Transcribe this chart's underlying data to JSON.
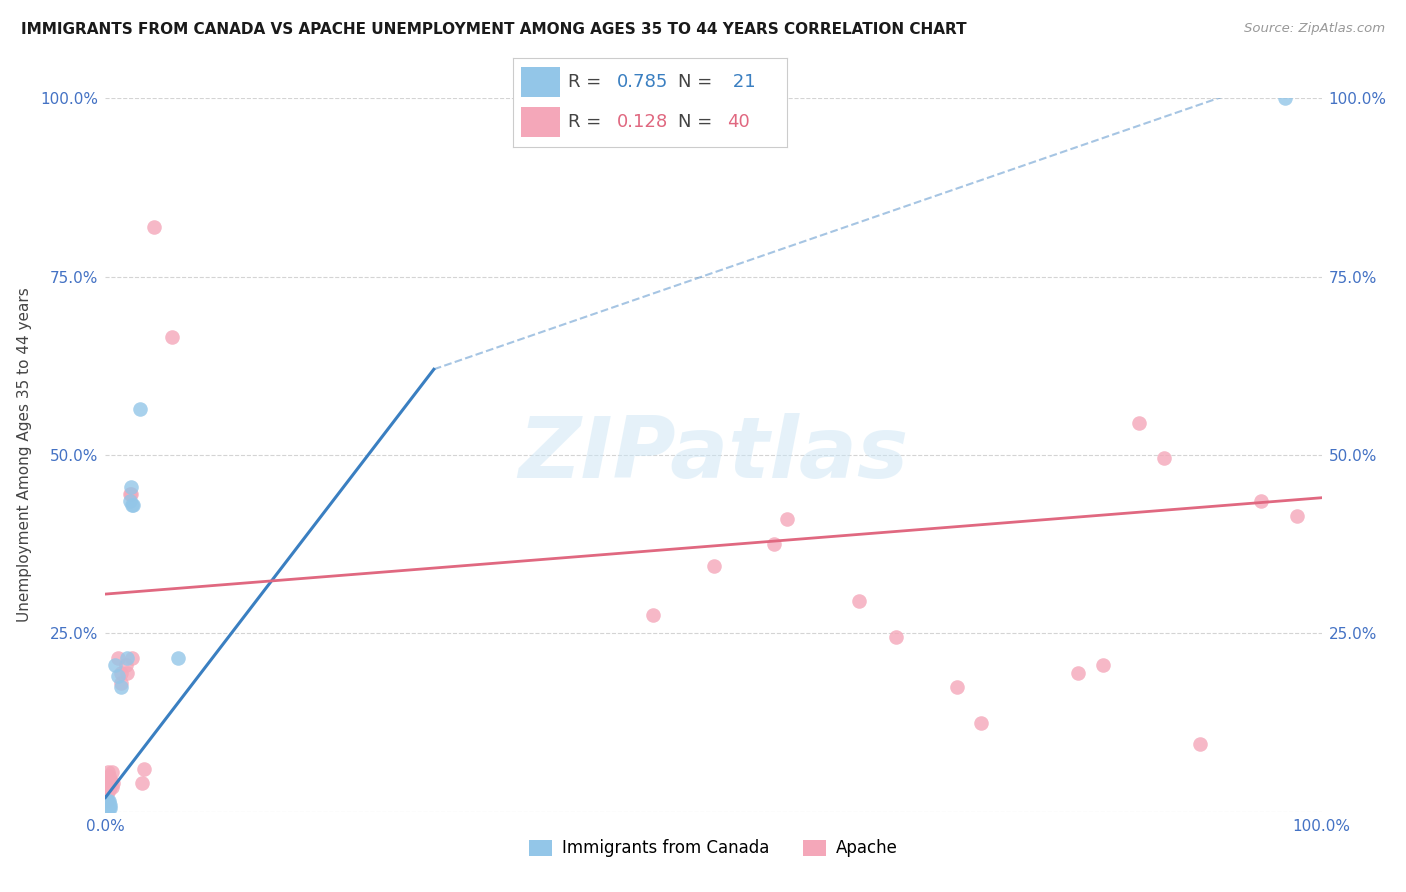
{
  "title": "IMMIGRANTS FROM CANADA VS APACHE UNEMPLOYMENT AMONG AGES 35 TO 44 YEARS CORRELATION CHART",
  "source": "Source: ZipAtlas.com",
  "ylabel": "Unemployment Among Ages 35 to 44 years",
  "xlim": [
    0.0,
    1.0
  ],
  "ylim": [
    0.0,
    1.0
  ],
  "xticks": [
    0.0,
    0.25,
    0.5,
    0.75,
    1.0
  ],
  "yticks": [
    0.0,
    0.25,
    0.5,
    0.75,
    1.0
  ],
  "xtick_labels": [
    "0.0%",
    "",
    "",
    "",
    "100.0%"
  ],
  "ytick_labels": [
    "",
    "25.0%",
    "50.0%",
    "75.0%",
    "100.0%"
  ],
  "legend_label_canada": "Immigrants from Canada",
  "legend_label_apache": "Apache",
  "blue_color": "#93c6e8",
  "pink_color": "#f4a7b9",
  "blue_line_color": "#3a7fc1",
  "pink_line_color": "#e06880",
  "blue_R": "0.785",
  "blue_N": "21",
  "pink_R": "0.128",
  "pink_N": "40",
  "blue_scatter": [
    [
      0.001,
      0.005
    ],
    [
      0.001,
      0.01
    ],
    [
      0.002,
      0.005
    ],
    [
      0.002,
      0.01
    ],
    [
      0.002,
      0.015
    ],
    [
      0.003,
      0.005
    ],
    [
      0.003,
      0.01
    ],
    [
      0.003,
      0.015
    ],
    [
      0.004,
      0.005
    ],
    [
      0.004,
      0.01
    ],
    [
      0.008,
      0.205
    ],
    [
      0.01,
      0.19
    ],
    [
      0.013,
      0.175
    ],
    [
      0.018,
      0.215
    ],
    [
      0.02,
      0.435
    ],
    [
      0.021,
      0.455
    ],
    [
      0.022,
      0.43
    ],
    [
      0.023,
      0.43
    ],
    [
      0.028,
      0.565
    ],
    [
      0.06,
      0.215
    ],
    [
      0.97,
      1.0
    ]
  ],
  "pink_scatter": [
    [
      0.001,
      0.015
    ],
    [
      0.001,
      0.025
    ],
    [
      0.002,
      0.04
    ],
    [
      0.002,
      0.035
    ],
    [
      0.002,
      0.055
    ],
    [
      0.003,
      0.03
    ],
    [
      0.003,
      0.04
    ],
    [
      0.003,
      0.05
    ],
    [
      0.004,
      0.035
    ],
    [
      0.004,
      0.045
    ],
    [
      0.005,
      0.035
    ],
    [
      0.005,
      0.055
    ],
    [
      0.006,
      0.04
    ],
    [
      0.01,
      0.215
    ],
    [
      0.013,
      0.195
    ],
    [
      0.013,
      0.18
    ],
    [
      0.017,
      0.205
    ],
    [
      0.018,
      0.195
    ],
    [
      0.02,
      0.445
    ],
    [
      0.021,
      0.445
    ],
    [
      0.022,
      0.215
    ],
    [
      0.03,
      0.04
    ],
    [
      0.032,
      0.06
    ],
    [
      0.04,
      0.82
    ],
    [
      0.055,
      0.665
    ],
    [
      0.45,
      0.275
    ],
    [
      0.5,
      0.345
    ],
    [
      0.55,
      0.375
    ],
    [
      0.56,
      0.41
    ],
    [
      0.62,
      0.295
    ],
    [
      0.65,
      0.245
    ],
    [
      0.7,
      0.175
    ],
    [
      0.72,
      0.125
    ],
    [
      0.8,
      0.195
    ],
    [
      0.82,
      0.205
    ],
    [
      0.85,
      0.545
    ],
    [
      0.87,
      0.495
    ],
    [
      0.9,
      0.095
    ],
    [
      0.95,
      0.435
    ],
    [
      0.98,
      0.415
    ]
  ],
  "blue_solid_line": [
    [
      0.0,
      0.02
    ],
    [
      0.27,
      0.62
    ]
  ],
  "blue_dashed_line": [
    [
      0.27,
      0.62
    ],
    [
      1.0,
      1.05
    ]
  ],
  "pink_line": [
    [
      0.0,
      0.305
    ],
    [
      1.0,
      0.44
    ]
  ],
  "watermark": "ZIPatlas",
  "background_color": "#ffffff",
  "grid_color": "#d0d0d0",
  "tick_color": "#4472c4"
}
